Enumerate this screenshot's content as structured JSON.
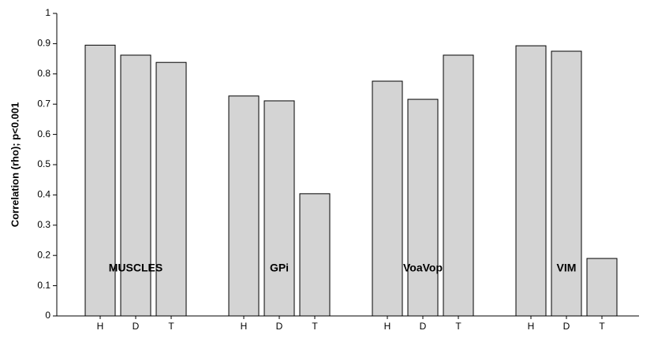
{
  "chart_data": {
    "type": "bar",
    "y_label": "Correlation (rho); p<0.001",
    "categories": [
      "H",
      "D",
      "T",
      "H",
      "D",
      "T",
      "H",
      "D",
      "T",
      "H",
      "D",
      "T"
    ],
    "groups": [
      "MUSCLES",
      "GPi",
      "VoaVop",
      "VIM"
    ],
    "values": [
      0.895,
      0.862,
      0.838,
      0.727,
      0.711,
      0.404,
      0.776,
      0.716,
      0.862,
      0.893,
      0.875,
      0.19
    ],
    "color": "#d4d4d4",
    "ylim": [
      0,
      1
    ],
    "yticks": [
      0,
      0.1,
      0.2,
      0.3,
      0.4,
      0.5,
      0.6,
      0.7,
      0.8,
      0.9,
      1
    ],
    "grid": false
  }
}
